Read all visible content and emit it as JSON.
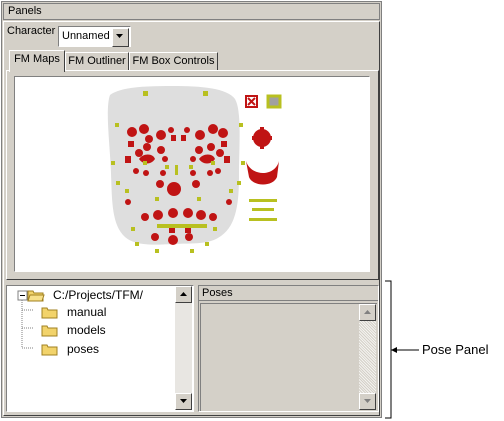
{
  "panel": {
    "title": "Panels"
  },
  "character": {
    "label": "Character",
    "value": "Unnamed"
  },
  "tabs": [
    {
      "label": "FM Maps",
      "active": true
    },
    {
      "label": "FM Outliner",
      "active": false
    },
    {
      "label": "FM Box Controls",
      "active": false
    }
  ],
  "tree": {
    "root": "C:/Projects/TFM/",
    "children": [
      "manual",
      "models",
      "poses"
    ]
  },
  "poses": {
    "header": "Poses"
  },
  "callout": {
    "label": "Pose Panel"
  },
  "colors": {
    "marker_red": "#c01414",
    "marker_olive": "#b8c020",
    "face": "#dedede",
    "chrome": "#d4d0c8"
  },
  "icons": [
    "chevron-down-icon",
    "folder-icon",
    "folder-open-icon",
    "scroll-up-icon",
    "scroll-down-icon"
  ]
}
